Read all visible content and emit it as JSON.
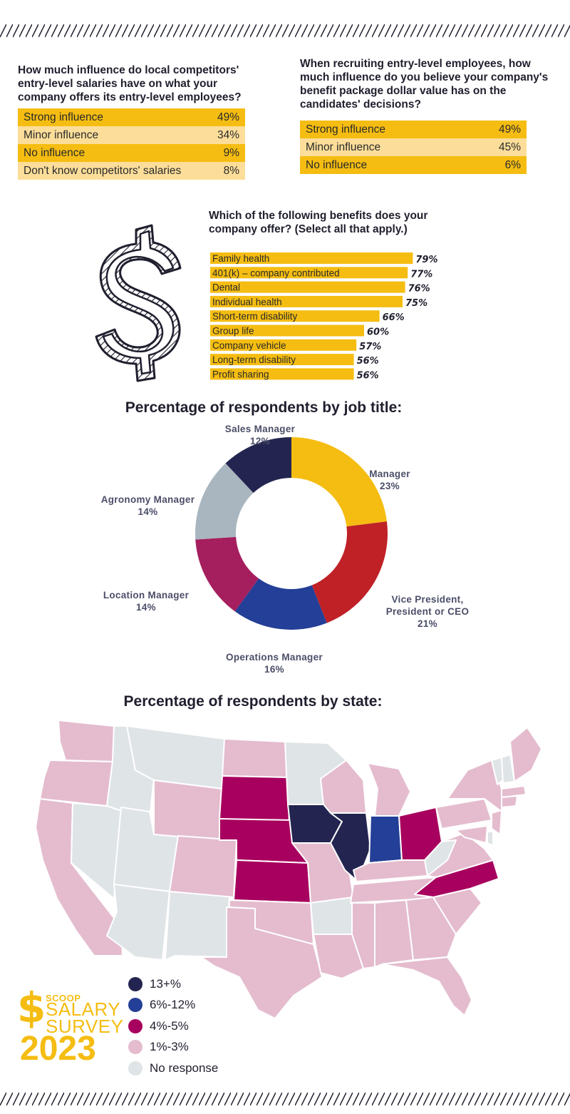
{
  "q1": {
    "question": "How much influence do local competitors' entry-level salaries have on what your company offers its entry-level employees?",
    "rows": [
      {
        "label": "Strong influence",
        "value": "49%"
      },
      {
        "label": "Minor influence",
        "value": "34%"
      },
      {
        "label": "No influence",
        "value": "9%"
      },
      {
        "label": "Don't know competitors' salaries",
        "value": "8%"
      }
    ]
  },
  "q2": {
    "question": "When recruiting entry-level employees, how much influence do you believe your company's benefit package dollar value has on the candidates' decisions?",
    "rows": [
      {
        "label": "Strong influence",
        "value": "49%"
      },
      {
        "label": "Minor influence",
        "value": "45%"
      },
      {
        "label": "No influence",
        "value": "6%"
      }
    ]
  },
  "benefits": {
    "title": "Which of the following benefits does your company offer? (Select all that apply.)"
  },
  "job_title": {
    "title": "Percentage of respondents by job title:"
  },
  "state": {
    "title": "Percentage of respondents by state:",
    "legend": [
      {
        "label": "13+%",
        "color": "#232550"
      },
      {
        "label": "6%-12%",
        "color": "#243f97"
      },
      {
        "label": "4%-5%",
        "color": "#a8005e"
      },
      {
        "label": "1%-3%",
        "color": "#e4bcce"
      },
      {
        "label": "No response",
        "color": "#dfe4e6"
      }
    ]
  },
  "logo": {
    "dollar": "$",
    "brand": "SCOOP",
    "line1": "SALARY",
    "line2": "SURVEY",
    "year": "2023"
  },
  "colors": {
    "gold": "#f5bd12",
    "gold_light": "#fcde9a",
    "navy": "#232550",
    "blue": "#243f97",
    "magenta": "#a8005e",
    "pink": "#e4bcce",
    "grey": "#dfe4e6"
  },
  "chart_data": [
    {
      "type": "bar",
      "orientation": "horizontal",
      "title": "Which of the following benefits does your company offer? (Select all that apply.)",
      "categories": [
        "Family health",
        "401(k) – company contributed",
        "Dental",
        "Individual health",
        "Short-term disability",
        "Group life",
        "Company vehicle",
        "Long-term disability",
        "Profit sharing"
      ],
      "values": [
        79,
        77,
        76,
        75,
        66,
        60,
        57,
        56,
        56
      ],
      "value_labels": [
        "79%",
        "77%",
        "76%",
        "75%",
        "66%",
        "60%",
        "57%",
        "56%",
        "56%"
      ],
      "xlim": [
        0,
        100
      ],
      "color": "#f5bd12"
    },
    {
      "type": "pie",
      "variant": "donut",
      "title": "Percentage of respondents by job title:",
      "slices": [
        {
          "label": "Manager",
          "value": 23,
          "value_label": "23%",
          "color": "#f5bd12"
        },
        {
          "label": "Vice President, President or CEO",
          "value": 21,
          "value_label": "21%",
          "color": "#bf2127"
        },
        {
          "label": "Operations Manager",
          "value": 16,
          "value_label": "16%",
          "color": "#243f97"
        },
        {
          "label": "Location Manager",
          "value": 14,
          "value_label": "14%",
          "color": "#a51f5f"
        },
        {
          "label": "Agronomy Manager",
          "value": 14,
          "value_label": "14%",
          "color": "#a9b6bf"
        },
        {
          "label": "Sales Manager",
          "value": 12,
          "value_label": "12%",
          "color": "#232550"
        }
      ]
    }
  ]
}
